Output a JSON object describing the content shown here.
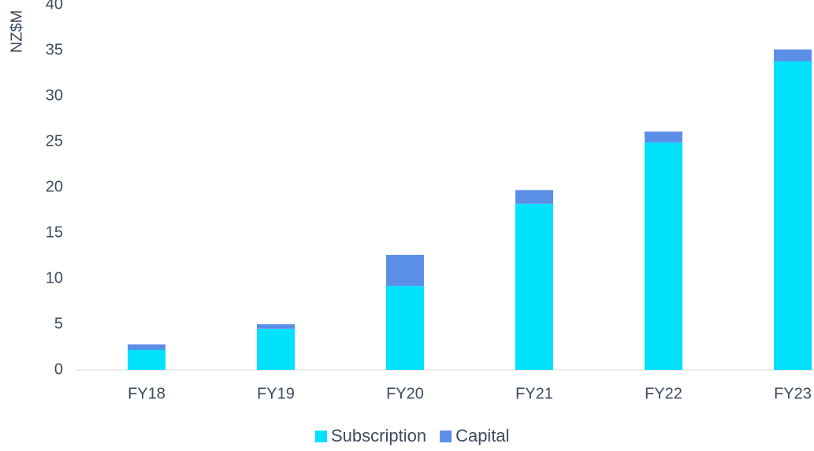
{
  "chart_data": {
    "type": "stacked_bar",
    "y_label": "NZ$M",
    "categories": [
      "FY18",
      "FY19",
      "FY20",
      "FY21",
      "FY22",
      "FY23"
    ],
    "series": [
      {
        "name": "Subscription",
        "color": "#00e1fc",
        "values": [
          2.2,
          4.5,
          9.2,
          18.2,
          24.9,
          33.8
        ]
      },
      {
        "name": "Capital",
        "color": "#5b8ee6",
        "values": [
          0.6,
          0.5,
          3.4,
          1.5,
          1.2,
          1.3
        ]
      }
    ],
    "ylim": [
      0,
      40
    ],
    "yticks": [
      0,
      5,
      10,
      15,
      20,
      25,
      30,
      35,
      40
    ],
    "grid": false,
    "legend": "bottom"
  }
}
